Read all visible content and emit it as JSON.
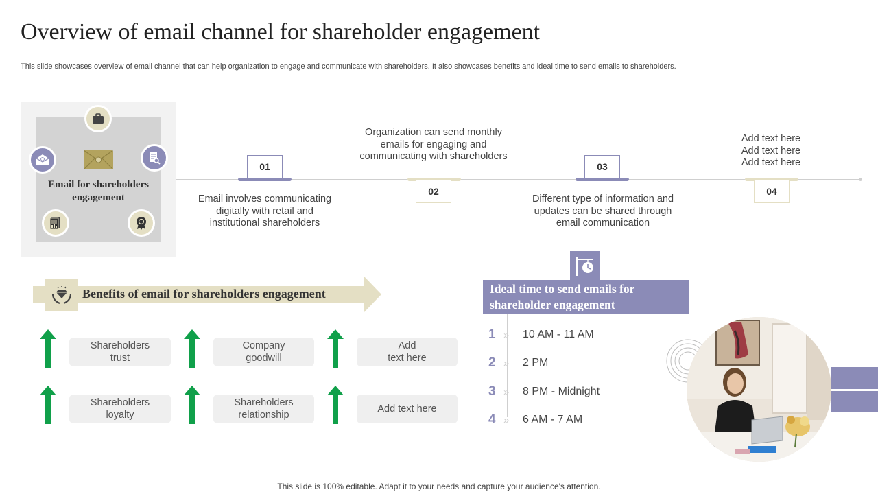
{
  "header": {
    "title": "Overview of  email channel for shareholder engagement",
    "subtitle": "This slide showcases overview of email channel that can help organization to engage and communicate with shareholders. It also showcases benefits and ideal time to send emails to shareholders."
  },
  "email_card": {
    "label": "Email for shareholders engagement",
    "icons": [
      "briefcase-icon",
      "email-open-icon",
      "document-search-icon",
      "report-icon",
      "award-badge-icon",
      "envelope-icon"
    ]
  },
  "timeline": {
    "steps": [
      {
        "number": "01",
        "text": "Email involves communicating\ndigitally with retail and\ninstitutional shareholders"
      },
      {
        "number": "02",
        "text": "Organization can send monthly\nemails for engaging  and\ncommunicating with shareholders"
      },
      {
        "number": "03",
        "text": "Different type of information and\nupdates can be shared through\nemail communication"
      },
      {
        "number": "04",
        "text": "Add text here\nAdd text here\nAdd text here"
      }
    ]
  },
  "benefits": {
    "title": "Benefits of  email for shareholders engagement",
    "items": [
      "Shareholders\ntrust",
      "Company\ngoodwill",
      "Add\ntext here",
      "Shareholders\nloyalty",
      "Shareholders\nrelationship",
      "Add text here"
    ]
  },
  "ideal_time": {
    "title": "Ideal time to send emails for shareholder engagement",
    "slots": [
      {
        "number": "1",
        "chevron": "»",
        "time": "10 AM - 11 AM"
      },
      {
        "number": "2",
        "chevron": "»",
        "time": "2 PM"
      },
      {
        "number": "3",
        "chevron": "»",
        "time": "8 PM - Midnight"
      },
      {
        "number": "4",
        "chevron": "»",
        "time": "6 AM - 7 AM"
      }
    ]
  },
  "footer": {
    "text": "This slide is 100% editable. Adapt it to your needs and capture your audience's attention."
  },
  "colors": {
    "accent_purple": "#8b8bb7",
    "accent_beige": "#e4dfc4",
    "arrow_green": "#10a04a",
    "envelope_gold": "#b3a35e"
  }
}
